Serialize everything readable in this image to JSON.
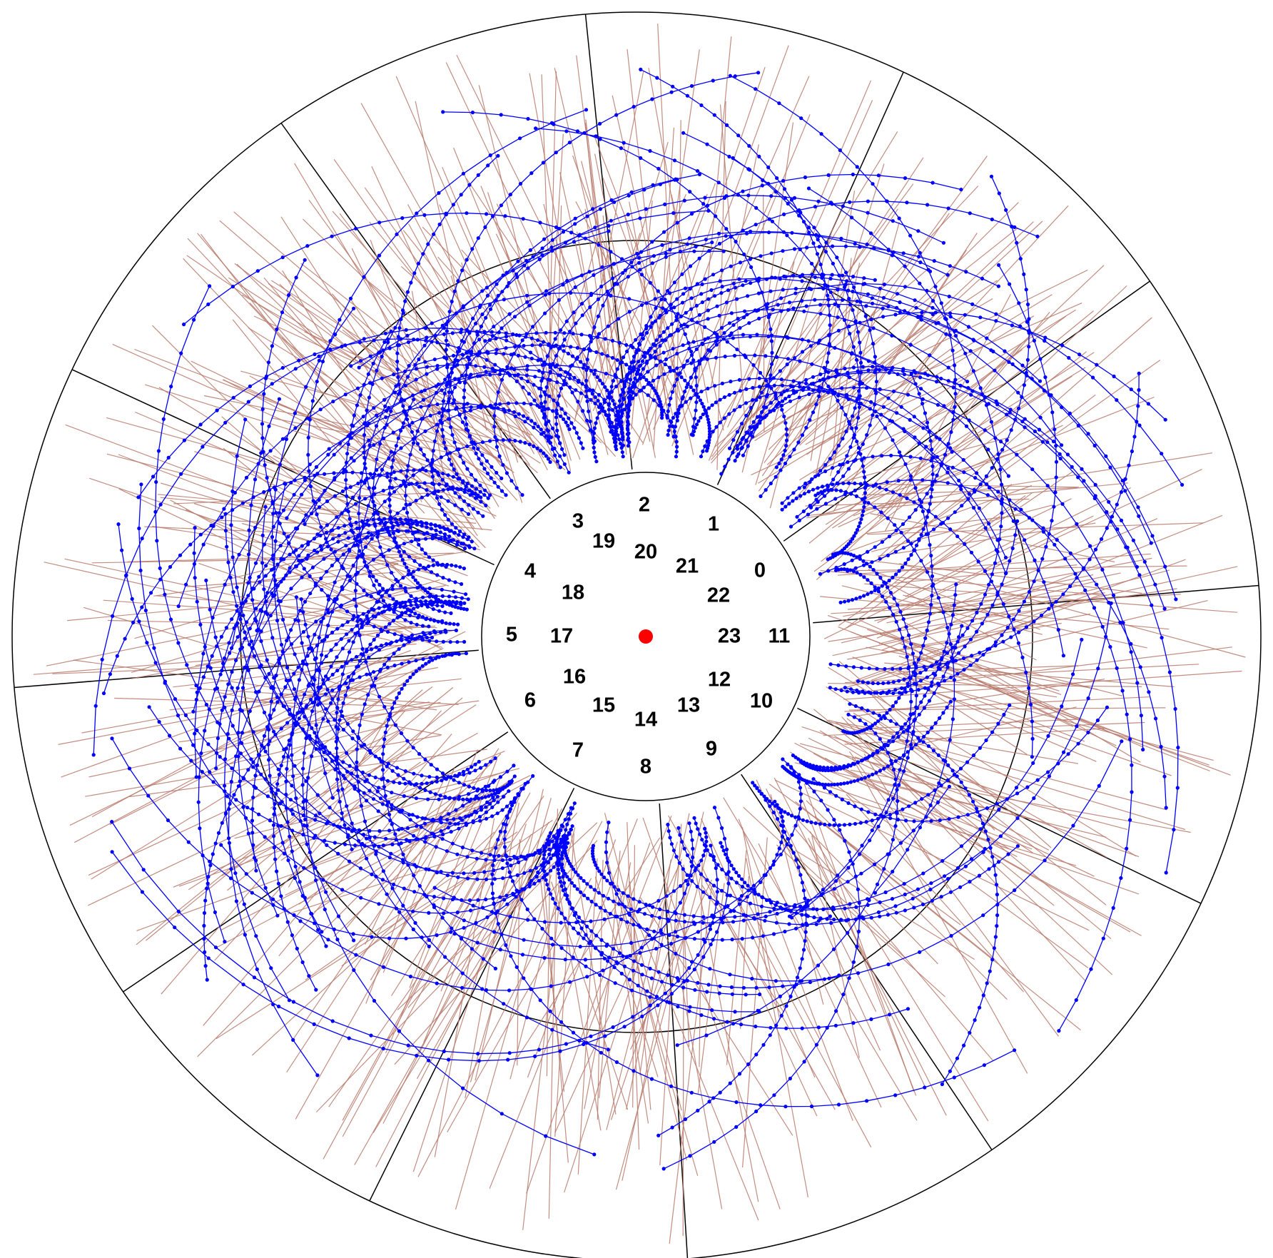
{
  "diagram": {
    "colors": {
      "background": "#ffffff",
      "boundary": "#000000",
      "hits": "#b87a6c",
      "tracks": "#0000ff",
      "vertex": "#ff0000",
      "core": "#ffffff"
    },
    "outer_sector_count": 12,
    "inner_sector_count": 12,
    "outer_sector_labels": [
      "0",
      "1",
      "2",
      "3",
      "4",
      "5",
      "6",
      "7",
      "8",
      "9",
      "10",
      "11"
    ],
    "inner_sector_labels": [
      "12",
      "13",
      "14",
      "15",
      "16",
      "17",
      "18",
      "19",
      "20",
      "21",
      "22",
      "23"
    ],
    "vertex_marker": "primary-vertex",
    "track_style": "polyline-with-dots",
    "hit_style": "thin-lines"
  }
}
